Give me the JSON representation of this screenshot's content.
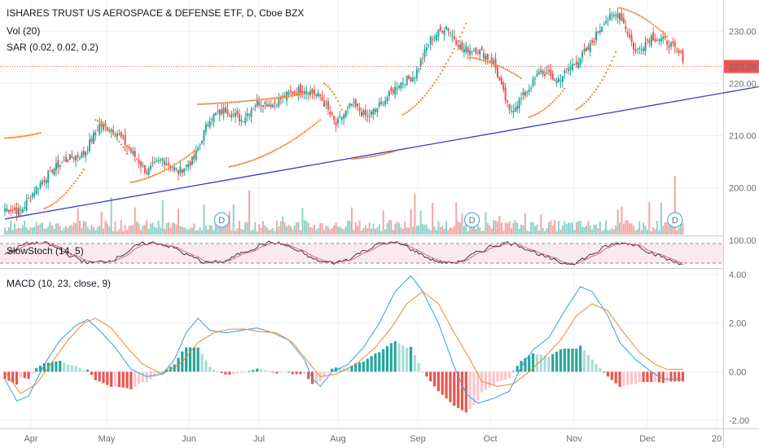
{
  "header": {
    "title": "ISHARES TRUST US AEROSPACE & DEFENSE ETF, D, Cboe BZX",
    "vol_label": "Vol (20)",
    "sar_label": "SAR (0.02, 0.02, 0.2)"
  },
  "price_tag": "223.24",
  "colors": {
    "up": "#26a69a",
    "down": "#ef5350",
    "vol_up": "#8fd1c8",
    "vol_down": "#f4a5a5",
    "sar": "#f57c24",
    "trend": "#3a3ac8",
    "stoch_k": "#2b2b2b",
    "stoch_d": "#e0567a",
    "stoch_band": "#fbe9f0",
    "macd": "#2f9fe6",
    "signal": "#f28527",
    "hist_up_strong": "#26a69a",
    "hist_up_weak": "#a8ded7",
    "hist_down_strong": "#ef5350",
    "hist_down_weak": "#f8c6cc",
    "price_line": "#ef5350",
    "dividend": "#2f9fe6"
  },
  "stoch": {
    "label": "SlowStoch (14, 5)",
    "level_label": "100.00"
  },
  "macd_panel": {
    "label": "MACD (10, 23, close, 9)"
  },
  "chart_data": [
    {
      "type": "candlestick",
      "title": "ISHARES TRUST US AEROSPACE & DEFENSE ETF, D, Cboe BZX",
      "x_ticks": [
        "Apr",
        "May",
        "Jun",
        "Jul",
        "Aug",
        "Sep",
        "Oct",
        "Nov",
        "Dec",
        "20"
      ],
      "y_ticks": [
        200.0,
        210.0,
        220.0,
        230.0
      ],
      "ylim": [
        191.0,
        236.0
      ],
      "last_price": 223.24,
      "dividend_markers": [
        "D",
        "D",
        "D"
      ],
      "close_path": [
        [
          0,
          196.0
        ],
        [
          8,
          195.5
        ],
        [
          16,
          200.0
        ],
        [
          24,
          203.5
        ],
        [
          32,
          205.5
        ],
        [
          40,
          206.5
        ],
        [
          48,
          212.0
        ],
        [
          56,
          211.0
        ],
        [
          64,
          207.0
        ],
        [
          72,
          203.0
        ],
        [
          80,
          205.5
        ],
        [
          88,
          203.0
        ],
        [
          96,
          205.5
        ],
        [
          104,
          213.5
        ],
        [
          112,
          215.0
        ],
        [
          120,
          213.0
        ],
        [
          128,
          216.5
        ],
        [
          136,
          216.0
        ],
        [
          144,
          218.0
        ],
        [
          152,
          219.0
        ],
        [
          160,
          217.5
        ],
        [
          168,
          212.0
        ],
        [
          176,
          216.0
        ],
        [
          184,
          213.5
        ],
        [
          192,
          216.5
        ],
        [
          200,
          220.0
        ],
        [
          208,
          221.5
        ],
        [
          216,
          228.5
        ],
        [
          224,
          231.0
        ],
        [
          232,
          226.5
        ],
        [
          240,
          226.5
        ],
        [
          248,
          224.0
        ],
        [
          256,
          214.5
        ],
        [
          264,
          218.0
        ],
        [
          272,
          222.5
        ],
        [
          280,
          220.5
        ],
        [
          288,
          223.5
        ],
        [
          296,
          226.5
        ],
        [
          304,
          232.0
        ],
        [
          312,
          233.5
        ],
        [
          320,
          226.0
        ],
        [
          328,
          229.0
        ],
        [
          336,
          228.0
        ],
        [
          344,
          225.0
        ]
      ],
      "trendline": [
        [
          0,
          194.0
        ],
        [
          392,
          220.0
        ]
      ],
      "sar_segments": [
        [
          [
            0,
            209.5
          ],
          [
            18,
            210.5
          ]
        ],
        [
          [
            20,
            196.0
          ],
          [
            40,
            203.5
          ]
        ],
        [
          [
            46,
            213.0
          ],
          [
            62,
            206.5
          ]
        ],
        [
          [
            64,
            201.0
          ],
          [
            96,
            207.0
          ]
        ],
        [
          [
            98,
            216.0
          ],
          [
            152,
            218.0
          ]
        ],
        [
          [
            114,
            204.0
          ],
          [
            160,
            213.0
          ]
        ],
        [
          [
            162,
            220.0
          ],
          [
            172,
            214.0
          ]
        ],
        [
          [
            176,
            205.5
          ],
          [
            198,
            207.0
          ]
        ],
        [
          [
            202,
            214.0
          ],
          [
            234,
            231.5
          ]
        ],
        [
          [
            236,
            225.0
          ],
          [
            262,
            221.0
          ]
        ],
        [
          [
            266,
            213.5
          ],
          [
            284,
            219.0
          ]
        ],
        [
          [
            290,
            215.0
          ],
          [
            310,
            226.0
          ]
        ],
        [
          [
            312,
            234.5
          ],
          [
            336,
            229.0
          ]
        ]
      ]
    },
    {
      "type": "bar",
      "title": "Vol (20)",
      "note": "volume histogram, relative heights"
    },
    {
      "type": "line",
      "title": "SlowStoch (14, 5)",
      "y_ticks": [
        100.0
      ],
      "ylim": [
        0,
        100
      ],
      "bands": [
        20,
        80
      ]
    },
    {
      "type": "line",
      "title": "MACD (10, 23, close, 9)",
      "y_ticks": [
        4.0,
        2.0,
        0.0,
        -2.0
      ],
      "ylim": [
        -2.3,
        4.2
      ],
      "series": [
        {
          "name": "MACD",
          "points": [
            [
              0,
              -0.3
            ],
            [
              6,
              -1.2
            ],
            [
              12,
              -1.0
            ],
            [
              20,
              0.3
            ],
            [
              28,
              1.3
            ],
            [
              36,
              1.9
            ],
            [
              42,
              2.15
            ],
            [
              48,
              1.7
            ],
            [
              56,
              1.0
            ],
            [
              64,
              0.1
            ],
            [
              72,
              -0.2
            ],
            [
              80,
              -0.1
            ],
            [
              86,
              0.5
            ],
            [
              92,
              1.6
            ],
            [
              98,
              2.2
            ],
            [
              104,
              1.7
            ],
            [
              112,
              1.6
            ],
            [
              120,
              1.7
            ],
            [
              128,
              1.8
            ],
            [
              136,
              1.6
            ],
            [
              144,
              1.3
            ],
            [
              152,
              0.5
            ],
            [
              156,
              -0.3
            ],
            [
              160,
              -0.6
            ],
            [
              166,
              0.0
            ],
            [
              174,
              0.3
            ],
            [
              182,
              1.0
            ],
            [
              190,
              2.0
            ],
            [
              198,
              3.3
            ],
            [
              206,
              3.95
            ],
            [
              212,
              3.3
            ],
            [
              220,
              2.0
            ],
            [
              228,
              0.2
            ],
            [
              234,
              -0.9
            ],
            [
              240,
              -1.3
            ],
            [
              248,
              -1.1
            ],
            [
              256,
              -0.8
            ],
            [
              262,
              0.2
            ],
            [
              268,
              0.9
            ],
            [
              276,
              1.4
            ],
            [
              284,
              2.5
            ],
            [
              292,
              3.5
            ],
            [
              298,
              3.3
            ],
            [
              306,
              2.3
            ],
            [
              312,
              1.2
            ],
            [
              320,
              0.5
            ],
            [
              328,
              0.0
            ],
            [
              334,
              -0.3
            ]
          ]
        },
        {
          "name": "Signal",
          "points": [
            [
              0,
              0.0
            ],
            [
              8,
              -0.9
            ],
            [
              16,
              -0.5
            ],
            [
              24,
              0.4
            ],
            [
              32,
              1.3
            ],
            [
              40,
              2.0
            ],
            [
              46,
              2.2
            ],
            [
              54,
              1.8
            ],
            [
              62,
              1.0
            ],
            [
              70,
              0.3
            ],
            [
              80,
              -0.1
            ],
            [
              90,
              0.4
            ],
            [
              98,
              1.2
            ],
            [
              106,
              1.6
            ],
            [
              114,
              1.75
            ],
            [
              122,
              1.75
            ],
            [
              130,
              1.65
            ],
            [
              138,
              1.6
            ],
            [
              146,
              1.2
            ],
            [
              154,
              0.4
            ],
            [
              160,
              -0.2
            ],
            [
              168,
              -0.1
            ],
            [
              178,
              0.3
            ],
            [
              188,
              1.0
            ],
            [
              196,
              1.8
            ],
            [
              204,
              2.8
            ],
            [
              212,
              3.3
            ],
            [
              220,
              2.8
            ],
            [
              228,
              1.6
            ],
            [
              236,
              0.5
            ],
            [
              242,
              -0.4
            ],
            [
              250,
              -0.6
            ],
            [
              258,
              -0.5
            ],
            [
              266,
              0.0
            ],
            [
              274,
              0.6
            ],
            [
              282,
              1.3
            ],
            [
              290,
              2.3
            ],
            [
              298,
              2.8
            ],
            [
              306,
              2.5
            ],
            [
              314,
              1.6
            ],
            [
              322,
              0.8
            ],
            [
              330,
              0.3
            ],
            [
              336,
              0.1
            ]
          ]
        }
      ]
    }
  ]
}
